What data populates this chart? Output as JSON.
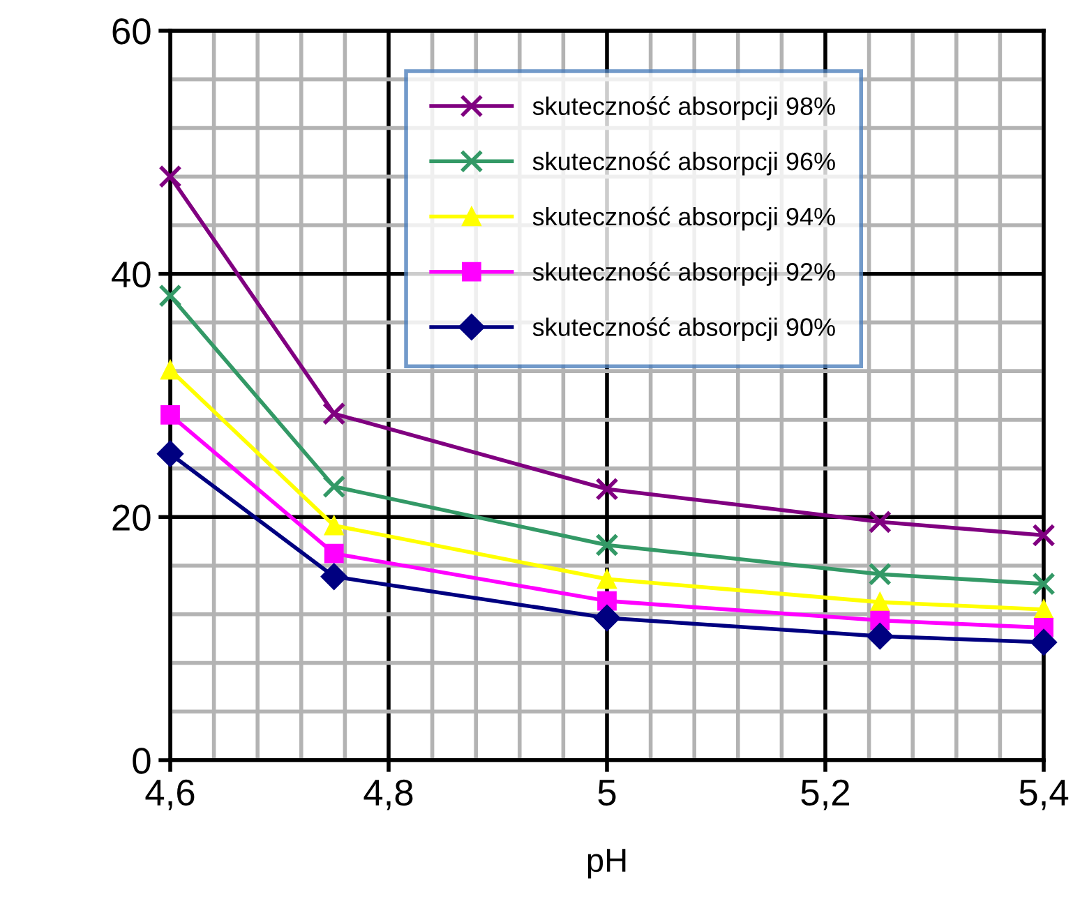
{
  "chart_data": {
    "type": "line",
    "xlabel": "pH",
    "x": [
      4.6,
      4.75,
      5.0,
      5.25,
      5.4
    ],
    "series": [
      {
        "name": "skuteczność absorpcji 98%",
        "color": "#800080",
        "marker": "cross",
        "values": [
          48.0,
          28.5,
          22.3,
          19.6,
          18.5
        ]
      },
      {
        "name": "skuteczność absorpcji 96%",
        "color": "#339966",
        "marker": "cross",
        "values": [
          38.2,
          22.5,
          17.7,
          15.3,
          14.5
        ]
      },
      {
        "name": "skuteczność absorpcji 94%",
        "color": "#ffff00",
        "marker": "triangle",
        "values": [
          32.1,
          19.3,
          14.9,
          13.0,
          12.4
        ]
      },
      {
        "name": "skuteczność absorpcji 92%",
        "color": "#ff00ff",
        "marker": "square",
        "values": [
          28.4,
          17.0,
          13.1,
          11.5,
          10.9
        ]
      },
      {
        "name": "skuteczność absorpcji 90%",
        "color": "#000080",
        "marker": "diamond",
        "values": [
          25.2,
          15.1,
          11.7,
          10.2,
          9.7
        ]
      }
    ],
    "xlim": [
      4.6,
      5.4
    ],
    "xticks": [
      {
        "value": 4.6,
        "label": "4,6"
      },
      {
        "value": 4.8,
        "label": "4,8"
      },
      {
        "value": 5.0,
        "label": "5"
      },
      {
        "value": 5.2,
        "label": "5,2"
      },
      {
        "value": 5.4,
        "label": "5,4"
      }
    ],
    "ylim": [
      0,
      60
    ],
    "yticks": [
      0,
      20,
      40,
      60
    ],
    "grid": true,
    "legend": "top right",
    "line_style": "solid"
  }
}
